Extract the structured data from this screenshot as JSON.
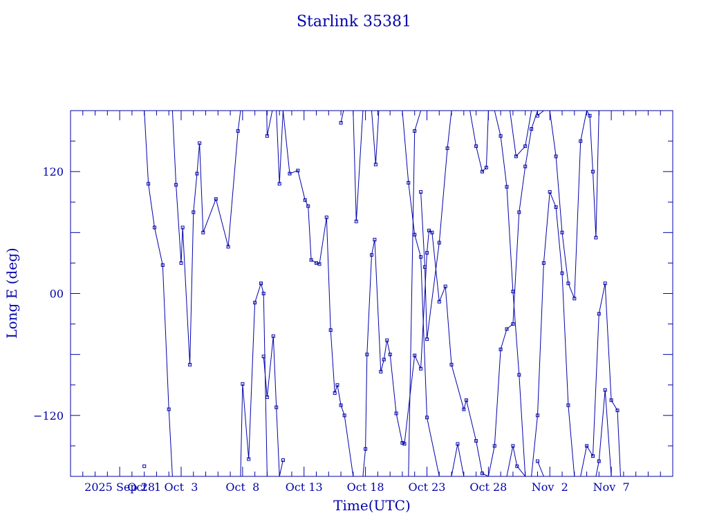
{
  "colors": {
    "ink": "#0000aa",
    "background": "#ffffff"
  },
  "chart_data": {
    "type": "line",
    "title": "Starlink 35381",
    "xlabel": "Time(UTC)",
    "ylabel": "Long E (deg)",
    "xlim": [
      "2025-09-24",
      "2025-11-12"
    ],
    "ylim": [
      -180,
      180
    ],
    "x_tick_labels": [
      {
        "date": "2025-09-28",
        "label": "2025 Sep 28"
      },
      {
        "date": "2025-09-30",
        "label": "Oct  1"
      },
      {
        "date": "2025-10-03",
        "label": "Oct  3"
      },
      {
        "date": "2025-10-08",
        "label": "Oct  8"
      },
      {
        "date": "2025-10-13",
        "label": "Oct 13"
      },
      {
        "date": "2025-10-18",
        "label": "Oct 18"
      },
      {
        "date": "2025-10-23",
        "label": "Oct 23"
      },
      {
        "date": "2025-10-28",
        "label": "Oct 28"
      },
      {
        "date": "2025-11-02",
        "label": "Nov  2"
      },
      {
        "date": "2025-11-07",
        "label": "Nov  7"
      }
    ],
    "y_tick_labels": [
      {
        "value": 120,
        "label": "120"
      },
      {
        "value": 0,
        "label": "00"
      },
      {
        "value": -120,
        "label": "−120"
      }
    ],
    "grid": false,
    "marker": "square",
    "series": [
      {
        "values": [
          [
            "2025-09-30 00:00",
            -170
          ]
        ]
      },
      {
        "values": [
          [
            "2025-09-30 00:00",
            180
          ],
          [
            "2025-09-30 08:00",
            108
          ],
          [
            "2025-09-30 20:00",
            65
          ],
          [
            "2025-10-01 12:00",
            28
          ],
          [
            "2025-10-02 00:00",
            -114
          ],
          [
            "2025-10-02 07:00",
            -180
          ]
        ]
      },
      {
        "values": [
          [
            "2025-10-02 07:00",
            180
          ],
          [
            "2025-10-02 14:00",
            107
          ],
          [
            "2025-10-03 00:00",
            30
          ],
          [
            "2025-10-03 03:00",
            65
          ],
          [
            "2025-10-03 17:00",
            -70
          ],
          [
            "2025-10-04 00:00",
            80
          ],
          [
            "2025-10-04 07:00",
            118
          ],
          [
            "2025-10-04 12:00",
            148
          ],
          [
            "2025-10-04 19:00",
            60
          ],
          [
            "2025-10-05 20:00",
            93
          ],
          [
            "2025-10-06 20:00",
            46
          ],
          [
            "2025-10-07 15:00",
            160
          ],
          [
            "2025-10-07 20:00",
            180
          ]
        ]
      },
      {
        "values": [
          [
            "2025-10-07 20:00",
            -180
          ],
          [
            "2025-10-08 00:00",
            -89
          ],
          [
            "2025-10-08 12:00",
            -163
          ],
          [
            "2025-10-09 00:00",
            -9
          ],
          [
            "2025-10-09 12:00",
            10
          ],
          [
            "2025-10-09 17:00",
            0
          ],
          [
            "2025-10-10 00:00",
            -180
          ]
        ]
      },
      {
        "values": [
          [
            "2025-10-09 17:00",
            -62
          ],
          [
            "2025-10-10 00:00",
            -102
          ],
          [
            "2025-10-10 12:00",
            -42
          ],
          [
            "2025-10-10 18:00",
            -112
          ],
          [
            "2025-10-11 00:00",
            -180
          ]
        ]
      },
      {
        "values": [
          [
            "2025-10-09 23:00",
            180
          ],
          [
            "2025-10-10 00:00",
            155
          ],
          [
            "2025-10-10 10:00",
            180
          ]
        ]
      },
      {
        "values": [
          [
            "2025-10-10 18:00",
            180
          ],
          [
            "2025-10-11 00:00",
            108
          ],
          [
            "2025-10-11 07:00",
            180
          ]
        ]
      },
      {
        "values": [
          [
            "2025-10-11 00:00",
            -180
          ],
          [
            "2025-10-11 07:00",
            -164
          ]
        ]
      },
      {
        "values": [
          [
            "2025-10-11 07:00",
            180
          ],
          [
            "2025-10-11 20:00",
            118
          ],
          [
            "2025-10-12 12:00",
            121
          ],
          [
            "2025-10-13 02:00",
            92
          ],
          [
            "2025-10-13 08:00",
            86
          ],
          [
            "2025-10-13 14:00",
            33
          ],
          [
            "2025-10-14 00:00",
            30
          ],
          [
            "2025-10-14 06:00",
            29
          ],
          [
            "2025-10-14 20:00",
            75
          ],
          [
            "2025-10-15 04:00",
            -36
          ],
          [
            "2025-10-15 12:00",
            -98
          ],
          [
            "2025-10-15 17:00",
            -90
          ],
          [
            "2025-10-16 00:00",
            -110
          ],
          [
            "2025-10-16 07:00",
            -120
          ],
          [
            "2025-10-17 00:00",
            -180
          ]
        ]
      },
      {
        "values": [
          [
            "2025-10-16 00:00",
            168
          ],
          [
            "2025-10-16 05:00",
            180
          ]
        ]
      },
      {
        "values": [
          [
            "2025-10-17 00:00",
            180
          ],
          [
            "2025-10-17 06:00",
            71
          ],
          [
            "2025-10-17 19:00",
            180
          ]
        ]
      },
      {
        "values": [
          [
            "2025-10-17 19:00",
            -180
          ],
          [
            "2025-10-18 00:00",
            -153
          ],
          [
            "2025-10-18 03:00",
            -60
          ],
          [
            "2025-10-18 12:00",
            38
          ],
          [
            "2025-10-18 18:00",
            53
          ],
          [
            "2025-10-19 06:00",
            -77
          ],
          [
            "2025-10-19 12:00",
            -65
          ],
          [
            "2025-10-19 18:00",
            -46
          ],
          [
            "2025-10-20 00:00",
            -60
          ],
          [
            "2025-10-20 12:00",
            -118
          ],
          [
            "2025-10-21 00:00",
            -147
          ],
          [
            "2025-10-21 04:00",
            -148
          ],
          [
            "2025-10-22 00:00",
            -61
          ],
          [
            "2025-10-22 12:00",
            -74
          ],
          [
            "2025-10-23 00:00",
            40
          ],
          [
            "2025-10-23 04:00",
            62
          ],
          [
            "2025-10-23 10:00",
            60
          ],
          [
            "2025-10-24 00:00",
            -8
          ],
          [
            "2025-10-24 12:00",
            7
          ],
          [
            "2025-10-25 00:00",
            -70
          ],
          [
            "2025-10-26 00:00",
            -114
          ],
          [
            "2025-10-26 05:00",
            -105
          ],
          [
            "2025-10-27 00:00",
            -145
          ],
          [
            "2025-10-27 12:00",
            -177
          ],
          [
            "2025-10-28 00:00",
            -180
          ]
        ]
      },
      {
        "values": [
          [
            "2025-10-18 12:00",
            180
          ],
          [
            "2025-10-18 20:00",
            127
          ],
          [
            "2025-10-19 02:00",
            180
          ]
        ]
      },
      {
        "values": [
          [
            "2025-10-21 00:00",
            180
          ],
          [
            "2025-10-21 12:00",
            109
          ],
          [
            "2025-10-22 00:00",
            58
          ],
          [
            "2025-10-22 12:00",
            36
          ],
          [
            "2025-10-23 00:00",
            -122
          ],
          [
            "2025-10-24 00:00",
            -180
          ]
        ]
      },
      {
        "values": [
          [
            "2025-10-21 12:00",
            -180
          ],
          [
            "2025-10-22 00:00",
            160
          ],
          [
            "2025-10-22 12:00",
            180
          ]
        ]
      },
      {
        "values": [
          [
            "2025-10-22 12:00",
            100
          ],
          [
            "2025-10-22 20:00",
            26
          ],
          [
            "2025-10-23 00:00",
            -45
          ],
          [
            "2025-10-24 00:00",
            50
          ],
          [
            "2025-10-24 16:00",
            143
          ],
          [
            "2025-10-25 00:00",
            180
          ]
        ]
      },
      {
        "values": [
          [
            "2025-10-25 00:00",
            -180
          ],
          [
            "2025-10-25 12:00",
            -148
          ],
          [
            "2025-10-26 00:00",
            -180
          ]
        ]
      },
      {
        "values": [
          [
            "2025-10-26 12:00",
            180
          ],
          [
            "2025-10-27 00:00",
            145
          ],
          [
            "2025-10-27 12:00",
            120
          ],
          [
            "2025-10-27 20:00",
            124
          ],
          [
            "2025-10-28 00:00",
            180
          ]
        ]
      },
      {
        "values": [
          [
            "2025-10-28 00:00",
            -180
          ],
          [
            "2025-10-28 12:00",
            -150
          ],
          [
            "2025-10-29 00:00",
            -55
          ],
          [
            "2025-10-29 12:00",
            -35
          ],
          [
            "2025-10-30 00:00",
            -30
          ],
          [
            "2025-10-30 12:00",
            80
          ],
          [
            "2025-10-31 00:00",
            125
          ],
          [
            "2025-10-31 12:00",
            162
          ],
          [
            "2025-11-01 00:00",
            180
          ]
        ]
      },
      {
        "values": [
          [
            "2025-10-28 12:00",
            180
          ],
          [
            "2025-10-29 00:00",
            155
          ],
          [
            "2025-10-29 12:00",
            105
          ],
          [
            "2025-10-30 00:00",
            2
          ],
          [
            "2025-10-30 12:00",
            -80
          ],
          [
            "2025-10-31 00:00",
            -180
          ]
        ]
      },
      {
        "values": [
          [
            "2025-10-29 12:00",
            -180
          ],
          [
            "2025-10-30 00:00",
            -150
          ],
          [
            "2025-10-30 08:00",
            -170
          ],
          [
            "2025-10-31 00:00",
            -180
          ]
        ]
      },
      {
        "values": [
          [
            "2025-10-29 18:00",
            180
          ],
          [
            "2025-10-30 06:00",
            135
          ],
          [
            "2025-10-31 00:00",
            145
          ],
          [
            "2025-10-31 12:00",
            180
          ]
        ]
      },
      {
        "values": [
          [
            "2025-10-31 12:00",
            -180
          ],
          [
            "2025-11-01 00:00",
            -120
          ],
          [
            "2025-11-01 12:00",
            30
          ],
          [
            "2025-11-02 00:00",
            100
          ],
          [
            "2025-11-02 12:00",
            85
          ],
          [
            "2025-11-03 00:00",
            20
          ],
          [
            "2025-11-03 12:00",
            -110
          ],
          [
            "2025-11-04 00:00",
            -180
          ]
        ]
      },
      {
        "values": [
          [
            "2025-11-01 00:00",
            175
          ],
          [
            "2025-11-01 12:00",
            180
          ]
        ]
      },
      {
        "values": [
          [
            "2025-11-01 00:00",
            -165
          ],
          [
            "2025-11-01 12:00",
            -180
          ]
        ]
      },
      {
        "values": [
          [
            "2025-11-02 00:00",
            180
          ],
          [
            "2025-11-02 12:00",
            135
          ],
          [
            "2025-11-03 00:00",
            60
          ],
          [
            "2025-11-03 12:00",
            10
          ],
          [
            "2025-11-04 00:00",
            -5
          ],
          [
            "2025-11-04 12:00",
            150
          ],
          [
            "2025-11-05 00:00",
            180
          ]
        ]
      },
      {
        "values": [
          [
            "2025-11-04 12:00",
            -180
          ],
          [
            "2025-11-05 00:00",
            -150
          ],
          [
            "2025-11-05 12:00",
            -160
          ],
          [
            "2025-11-06 00:00",
            -20
          ],
          [
            "2025-11-06 12:00",
            10
          ],
          [
            "2025-11-07 00:00",
            -105
          ],
          [
            "2025-11-07 12:00",
            -115
          ],
          [
            "2025-11-07 18:00",
            -180
          ]
        ]
      },
      {
        "values": [
          [
            "2025-11-05 00:00",
            180
          ],
          [
            "2025-11-05 06:00",
            175
          ],
          [
            "2025-11-05 12:00",
            120
          ],
          [
            "2025-11-05 18:00",
            55
          ],
          [
            "2025-11-06 00:00",
            180
          ]
        ]
      },
      {
        "values": [
          [
            "2025-11-05 18:00",
            -180
          ],
          [
            "2025-11-06 00:00",
            -165
          ],
          [
            "2025-11-06 12:00",
            -95
          ],
          [
            "2025-11-07 00:00",
            -180
          ]
        ]
      }
    ]
  }
}
